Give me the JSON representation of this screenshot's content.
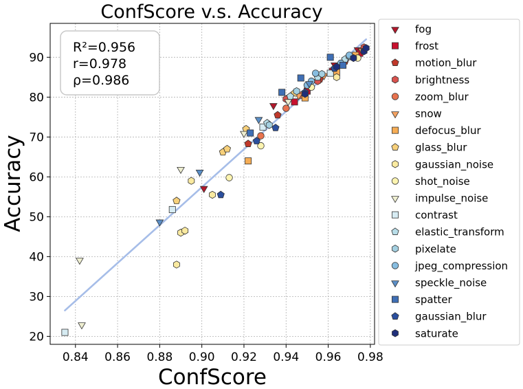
{
  "chart_data": {
    "type": "scatter",
    "title": "ConfScore  v.s.  Accuracy",
    "xlabel": "ConfScore",
    "ylabel": "Accuracy",
    "xlim": [
      0.828,
      0.982
    ],
    "ylim": [
      18,
      98.5
    ],
    "xticks": [
      0.84,
      0.86,
      0.88,
      0.9,
      0.92,
      0.94,
      0.96,
      0.98
    ],
    "xtick_labels": [
      "0.84",
      "0.86",
      "0.88",
      "0.90",
      "0.92",
      "0.94",
      "0.96",
      "0.98"
    ],
    "yticks": [
      20,
      30,
      40,
      50,
      60,
      70,
      80,
      90
    ],
    "ytick_labels": [
      "20",
      "30",
      "40",
      "50",
      "60",
      "70",
      "80",
      "90"
    ],
    "grid": true,
    "legend_position": "outside-right",
    "stats": [
      "R²=0.956",
      "r=0.978",
      "ρ=0.986"
    ],
    "fit_line": {
      "x": [
        0.835,
        0.978
      ],
      "y": [
        26.5,
        94.5
      ],
      "color": "#a6bde8"
    },
    "series": [
      {
        "name": "fog",
        "marker": "triangle-down",
        "color": "#b2182b",
        "points": [
          [
            0.901,
            57.2
          ],
          [
            0.934,
            78.0
          ],
          [
            0.963,
            88.2
          ],
          [
            0.974,
            92.0
          ]
        ]
      },
      {
        "name": "frost",
        "marker": "square",
        "color": "#c8102e",
        "points": [
          [
            0.944,
            78.8
          ],
          [
            0.95,
            81.5
          ],
          [
            0.962,
            86.5
          ],
          [
            0.975,
            91.0
          ]
        ]
      },
      {
        "name": "motion_blur",
        "marker": "pentagon",
        "color": "#c0392b",
        "points": [
          [
            0.922,
            68.3
          ],
          [
            0.936,
            75.5
          ],
          [
            0.956,
            84.5
          ],
          [
            0.968,
            89.0
          ]
        ]
      },
      {
        "name": "brightness",
        "marker": "hexagon",
        "color": "#d9534f",
        "points": [
          [
            0.94,
            79.5
          ],
          [
            0.955,
            84.0
          ],
          [
            0.964,
            87.5
          ],
          [
            0.977,
            92.5
          ]
        ]
      },
      {
        "name": "zoom_blur",
        "marker": "circle",
        "color": "#e8734f",
        "points": [
          [
            0.928,
            70.3
          ],
          [
            0.94,
            77.2
          ],
          [
            0.947,
            80.5
          ],
          [
            0.963,
            87.0
          ]
        ]
      },
      {
        "name": "snow",
        "marker": "triangle-down",
        "color": "#f4a261",
        "points": [
          [
            0.946,
            80.5
          ],
          [
            0.958,
            85.5
          ],
          [
            0.967,
            88.5
          ],
          [
            0.976,
            91.8
          ]
        ]
      },
      {
        "name": "defocus_blur",
        "marker": "square",
        "color": "#f6ad55",
        "points": [
          [
            0.922,
            64.0
          ],
          [
            0.949,
            79.8
          ],
          [
            0.964,
            86.2
          ],
          [
            0.973,
            90.5
          ]
        ]
      },
      {
        "name": "glass_blur",
        "marker": "pentagon",
        "color": "#f7d07a",
        "points": [
          [
            0.888,
            54.0
          ],
          [
            0.91,
            66.2
          ],
          [
            0.912,
            67.0
          ],
          [
            0.921,
            72.0
          ],
          [
            0.944,
            81.0
          ]
        ]
      },
      {
        "name": "gaussian_noise",
        "marker": "hexagon",
        "color": "#faeaa0",
        "points": [
          [
            0.888,
            38.0
          ],
          [
            0.89,
            46.0
          ],
          [
            0.892,
            46.5
          ],
          [
            0.895,
            59.0
          ],
          [
            0.905,
            55.5
          ],
          [
            0.964,
            85.0
          ]
        ]
      },
      {
        "name": "shot_noise",
        "marker": "circle",
        "color": "#fdf4b0",
        "points": [
          [
            0.913,
            59.8
          ],
          [
            0.928,
            67.8
          ],
          [
            0.952,
            82.5
          ],
          [
            0.974,
            89.8
          ]
        ]
      },
      {
        "name": "impulse_noise",
        "marker": "triangle-down",
        "color": "#eeeed0",
        "points": [
          [
            0.842,
            39.2
          ],
          [
            0.843,
            23.0
          ],
          [
            0.89,
            62.0
          ],
          [
            0.92,
            71.0
          ],
          [
            0.941,
            79.0
          ]
        ]
      },
      {
        "name": "contrast",
        "marker": "square",
        "color": "#d7ecf3",
        "points": [
          [
            0.835,
            21.0
          ],
          [
            0.886,
            51.8
          ],
          [
            0.929,
            72.5
          ],
          [
            0.961,
            86.0
          ]
        ]
      },
      {
        "name": "elastic_transform",
        "marker": "pentagon",
        "color": "#b8dde8",
        "points": [
          [
            0.931,
            73.5
          ],
          [
            0.942,
            80.2
          ],
          [
            0.955,
            85.0
          ],
          [
            0.968,
            89.5
          ]
        ]
      },
      {
        "name": "pixelate",
        "marker": "hexagon",
        "color": "#a3cfe0",
        "points": [
          [
            0.932,
            73.0
          ],
          [
            0.945,
            81.5
          ],
          [
            0.957,
            85.8
          ],
          [
            0.97,
            90.2
          ]
        ]
      },
      {
        "name": "jpeg_compression",
        "marker": "circle",
        "color": "#87bde0",
        "points": [
          [
            0.95,
            83.0
          ],
          [
            0.952,
            84.0
          ],
          [
            0.954,
            86.0
          ],
          [
            0.966,
            88.5
          ],
          [
            0.97,
            90.5
          ]
        ]
      },
      {
        "name": "speckle_noise",
        "marker": "triangle-down",
        "color": "#5b8fc7",
        "points": [
          [
            0.88,
            48.8
          ],
          [
            0.899,
            61.3
          ],
          [
            0.927,
            74.5
          ],
          [
            0.951,
            83.5
          ]
        ]
      },
      {
        "name": "spatter",
        "marker": "square",
        "color": "#3f6fb5",
        "points": [
          [
            0.923,
            71.0
          ],
          [
            0.938,
            81.2
          ],
          [
            0.947,
            84.8
          ],
          [
            0.961,
            90.0
          ],
          [
            0.967,
            88.0
          ]
        ]
      },
      {
        "name": "gaussian_blur",
        "marker": "pentagon",
        "color": "#2b4f9e",
        "points": [
          [
            0.909,
            55.5
          ],
          [
            0.926,
            69.0
          ],
          [
            0.935,
            72.3
          ],
          [
            0.949,
            81.2
          ],
          [
            0.963,
            87.2
          ]
        ]
      },
      {
        "name": "saturate",
        "marker": "hexagon",
        "color": "#1f2f7a",
        "points": [
          [
            0.949,
            80.8
          ],
          [
            0.964,
            87.6
          ],
          [
            0.972,
            89.8
          ],
          [
            0.977,
            91.5
          ],
          [
            0.978,
            92.3
          ]
        ]
      }
    ]
  }
}
